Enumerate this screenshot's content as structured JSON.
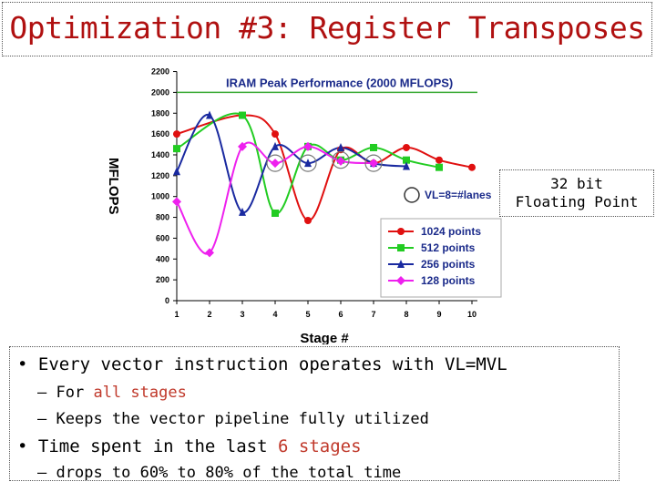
{
  "title": "Optimization #3: Register Transposes",
  "note": {
    "line1": "32 bit",
    "line2": "Floating Point"
  },
  "bullets": {
    "b1": "Every vector instruction operates with VL=MVL",
    "b1_sub1_pre": "For ",
    "b1_sub1_em": "all stages",
    "b1_sub2": "Keeps the vector pipeline fully utilized",
    "b2_pre": "Time spent in the last ",
    "b2_em": "6 stages",
    "b2_sub1": "drops to 60% to 80% of the total time",
    "bullet_glyph": "•",
    "dash_glyph": "–"
  },
  "colors": {
    "title": "#b01010",
    "accent": "#c0392b"
  },
  "chart_data": {
    "type": "line",
    "xlabel": "Stage #",
    "ylabel": "MFLOPS",
    "x_ticks": [
      1,
      2,
      3,
      4,
      5,
      6,
      7,
      8,
      9,
      10
    ],
    "ylim": [
      0,
      2200
    ],
    "y_ticks": [
      0,
      200,
      400,
      600,
      800,
      1000,
      1200,
      1400,
      1600,
      1800,
      2000,
      2200
    ],
    "grid": false,
    "peak_line": {
      "value": 2000,
      "label": "IRAM Peak Performance (2000 MFLOPS)",
      "color": "#3aaa35"
    },
    "annotation": "VL=8=#lanes",
    "circled_points": [
      {
        "x": 4,
        "y": 1320
      },
      {
        "x": 5,
        "y": 1320
      },
      {
        "x": 6,
        "y": 1350
      },
      {
        "x": 7,
        "y": 1320
      }
    ],
    "legend_position": "right",
    "series": [
      {
        "name": "1024 points",
        "color": "#e01010",
        "marker": "circle",
        "x": [
          1,
          3,
          4,
          5,
          6,
          7,
          8,
          9,
          10
        ],
        "values": [
          1600,
          1780,
          1600,
          770,
          1450,
          1320,
          1470,
          1350,
          1280
        ]
      },
      {
        "name": "512 points",
        "color": "#22cc22",
        "marker": "square",
        "x": [
          1,
          3,
          4,
          5,
          6,
          7,
          8,
          9
        ],
        "values": [
          1460,
          1780,
          840,
          1480,
          1350,
          1470,
          1350,
          1280
        ]
      },
      {
        "name": "256 points",
        "color": "#1a2aa0",
        "marker": "triangle",
        "x": [
          1,
          2,
          3,
          4,
          5,
          6,
          7,
          8
        ],
        "values": [
          1240,
          1780,
          850,
          1480,
          1320,
          1470,
          1320,
          1290
        ]
      },
      {
        "name": "128 points",
        "color": "#ee20ee",
        "marker": "diamond",
        "x": [
          1,
          2,
          3,
          4,
          5,
          6,
          7
        ],
        "values": [
          950,
          460,
          1480,
          1320,
          1480,
          1340,
          1320
        ]
      }
    ]
  }
}
